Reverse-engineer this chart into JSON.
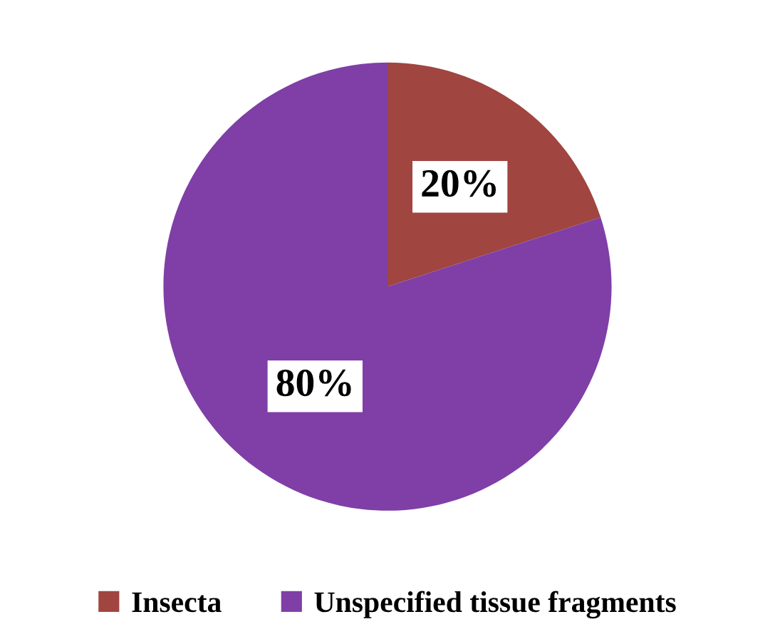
{
  "chart_data": {
    "type": "pie",
    "categories": [
      "Insecta",
      "Unspecified tissue fragments"
    ],
    "values": [
      20,
      80
    ],
    "colors": [
      "#a0453f",
      "#7f3fa6"
    ],
    "value_labels": [
      "20%",
      "80%"
    ],
    "legend": "bottom"
  }
}
